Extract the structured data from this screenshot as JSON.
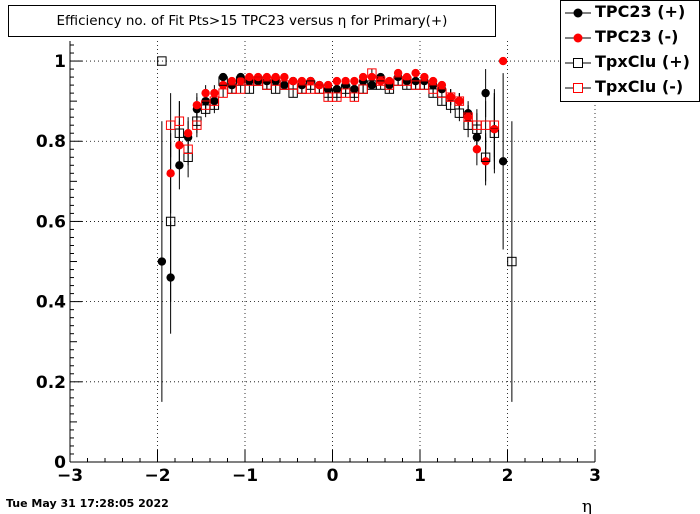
{
  "chart_data": {
    "type": "scatter",
    "title": "Efficiency no. of Fit Pts>15 TPC23 versus η for Primary(+)",
    "xlabel": "η",
    "ylabel": "",
    "xlim": [
      -3,
      3
    ],
    "ylim": [
      0,
      1.05
    ],
    "grid": true,
    "legend_position": "top-right",
    "x_ticks": [
      "−3",
      "−2",
      "−1",
      "0",
      "1",
      "2",
      "3"
    ],
    "y_ticks": [
      "0",
      "0.2",
      "0.4",
      "0.6",
      "0.8",
      "1"
    ],
    "series": [
      {
        "name": "TPC23 (+)",
        "marker": "filled-circle",
        "color": "#000000",
        "points": [
          {
            "x": -1.95,
            "y": 0.5,
            "err": 0.35
          },
          {
            "x": -1.85,
            "y": 0.46,
            "err": 0.14
          },
          {
            "x": -1.75,
            "y": 0.74,
            "err": 0.06
          },
          {
            "x": -1.65,
            "y": 0.81,
            "err": 0.04
          },
          {
            "x": -1.55,
            "y": 0.88,
            "err": 0.03
          },
          {
            "x": -1.45,
            "y": 0.9,
            "err": 0.02
          },
          {
            "x": -1.35,
            "y": 0.9,
            "err": 0.02
          },
          {
            "x": -1.25,
            "y": 0.96,
            "err": 0.01
          },
          {
            "x": -1.15,
            "y": 0.94,
            "err": 0.01
          },
          {
            "x": -1.05,
            "y": 0.96,
            "err": 0.01
          },
          {
            "x": -0.95,
            "y": 0.95,
            "err": 0.01
          },
          {
            "x": -0.85,
            "y": 0.95,
            "err": 0.01
          },
          {
            "x": -0.75,
            "y": 0.95,
            "err": 0.01
          },
          {
            "x": -0.65,
            "y": 0.95,
            "err": 0.01
          },
          {
            "x": -0.55,
            "y": 0.94,
            "err": 0.01
          },
          {
            "x": -0.45,
            "y": 0.95,
            "err": 0.01
          },
          {
            "x": -0.35,
            "y": 0.94,
            "err": 0.01
          },
          {
            "x": -0.25,
            "y": 0.95,
            "err": 0.01
          },
          {
            "x": -0.15,
            "y": 0.94,
            "err": 0.01
          },
          {
            "x": -0.05,
            "y": 0.93,
            "err": 0.01
          },
          {
            "x": 0.05,
            "y": 0.93,
            "err": 0.01
          },
          {
            "x": 0.15,
            "y": 0.94,
            "err": 0.01
          },
          {
            "x": 0.25,
            "y": 0.93,
            "err": 0.01
          },
          {
            "x": 0.35,
            "y": 0.95,
            "err": 0.01
          },
          {
            "x": 0.45,
            "y": 0.94,
            "err": 0.01
          },
          {
            "x": 0.55,
            "y": 0.96,
            "err": 0.01
          },
          {
            "x": 0.65,
            "y": 0.94,
            "err": 0.01
          },
          {
            "x": 0.75,
            "y": 0.96,
            "err": 0.01
          },
          {
            "x": 0.85,
            "y": 0.95,
            "err": 0.01
          },
          {
            "x": 0.95,
            "y": 0.95,
            "err": 0.01
          },
          {
            "x": 1.05,
            "y": 0.95,
            "err": 0.01
          },
          {
            "x": 1.15,
            "y": 0.94,
            "err": 0.01
          },
          {
            "x": 1.25,
            "y": 0.93,
            "err": 0.01
          },
          {
            "x": 1.35,
            "y": 0.91,
            "err": 0.02
          },
          {
            "x": 1.45,
            "y": 0.9,
            "err": 0.02
          },
          {
            "x": 1.55,
            "y": 0.87,
            "err": 0.03
          },
          {
            "x": 1.65,
            "y": 0.81,
            "err": 0.04
          },
          {
            "x": 1.75,
            "y": 0.92,
            "err": 0.06
          },
          {
            "x": 1.85,
            "y": 0.83,
            "err": 0.1
          },
          {
            "x": 1.95,
            "y": 0.75,
            "err": 0.22
          }
        ]
      },
      {
        "name": "TPC23 (-)",
        "marker": "filled-circle",
        "color": "#ff0000",
        "points": [
          {
            "x": -1.85,
            "y": 0.72,
            "err": 0.1
          },
          {
            "x": -1.75,
            "y": 0.79,
            "err": 0.06
          },
          {
            "x": -1.65,
            "y": 0.82,
            "err": 0.04
          },
          {
            "x": -1.55,
            "y": 0.89,
            "err": 0.03
          },
          {
            "x": -1.45,
            "y": 0.92,
            "err": 0.02
          },
          {
            "x": -1.35,
            "y": 0.92,
            "err": 0.02
          },
          {
            "x": -1.25,
            "y": 0.94,
            "err": 0.01
          },
          {
            "x": -1.15,
            "y": 0.95,
            "err": 0.01
          },
          {
            "x": -1.05,
            "y": 0.95,
            "err": 0.01
          },
          {
            "x": -0.95,
            "y": 0.96,
            "err": 0.01
          },
          {
            "x": -0.85,
            "y": 0.96,
            "err": 0.01
          },
          {
            "x": -0.75,
            "y": 0.96,
            "err": 0.01
          },
          {
            "x": -0.65,
            "y": 0.96,
            "err": 0.01
          },
          {
            "x": -0.55,
            "y": 0.96,
            "err": 0.01
          },
          {
            "x": -0.45,
            "y": 0.95,
            "err": 0.01
          },
          {
            "x": -0.35,
            "y": 0.95,
            "err": 0.01
          },
          {
            "x": -0.25,
            "y": 0.95,
            "err": 0.01
          },
          {
            "x": -0.15,
            "y": 0.94,
            "err": 0.01
          },
          {
            "x": -0.05,
            "y": 0.94,
            "err": 0.01
          },
          {
            "x": 0.05,
            "y": 0.95,
            "err": 0.01
          },
          {
            "x": 0.15,
            "y": 0.95,
            "err": 0.01
          },
          {
            "x": 0.25,
            "y": 0.95,
            "err": 0.01
          },
          {
            "x": 0.35,
            "y": 0.96,
            "err": 0.01
          },
          {
            "x": 0.45,
            "y": 0.96,
            "err": 0.01
          },
          {
            "x": 0.55,
            "y": 0.95,
            "err": 0.01
          },
          {
            "x": 0.65,
            "y": 0.95,
            "err": 0.01
          },
          {
            "x": 0.75,
            "y": 0.97,
            "err": 0.01
          },
          {
            "x": 0.85,
            "y": 0.96,
            "err": 0.01
          },
          {
            "x": 0.95,
            "y": 0.97,
            "err": 0.01
          },
          {
            "x": 1.05,
            "y": 0.96,
            "err": 0.01
          },
          {
            "x": 1.15,
            "y": 0.95,
            "err": 0.01
          },
          {
            "x": 1.25,
            "y": 0.94,
            "err": 0.01
          },
          {
            "x": 1.35,
            "y": 0.91,
            "err": 0.02
          },
          {
            "x": 1.45,
            "y": 0.9,
            "err": 0.02
          },
          {
            "x": 1.55,
            "y": 0.86,
            "err": 0.03
          },
          {
            "x": 1.65,
            "y": 0.78,
            "err": 0.04
          },
          {
            "x": 1.75,
            "y": 0.75,
            "err": 0.06
          },
          {
            "x": 1.85,
            "y": 0.83,
            "err": 0.08
          },
          {
            "x": 1.95,
            "y": 1.0,
            "err": 0.0
          }
        ]
      },
      {
        "name": "TpxClu (+)",
        "marker": "open-square",
        "color": "#000000",
        "points": [
          {
            "x": -1.95,
            "y": 1.0,
            "err": 0.0
          },
          {
            "x": -1.85,
            "y": 0.6,
            "err": 0.2
          },
          {
            "x": -1.75,
            "y": 0.82,
            "err": 0.08
          },
          {
            "x": -1.65,
            "y": 0.76,
            "err": 0.05
          },
          {
            "x": -1.55,
            "y": 0.85,
            "err": 0.03
          },
          {
            "x": -1.45,
            "y": 0.88,
            "err": 0.02
          },
          {
            "x": -1.35,
            "y": 0.89,
            "err": 0.02
          },
          {
            "x": -1.25,
            "y": 0.95,
            "err": 0.01
          },
          {
            "x": -1.15,
            "y": 0.93,
            "err": 0.01
          },
          {
            "x": -1.05,
            "y": 0.95,
            "err": 0.01
          },
          {
            "x": -0.95,
            "y": 0.93,
            "err": 0.01
          },
          {
            "x": -0.85,
            "y": 0.95,
            "err": 0.01
          },
          {
            "x": -0.75,
            "y": 0.94,
            "err": 0.01
          },
          {
            "x": -0.65,
            "y": 0.93,
            "err": 0.01
          },
          {
            "x": -0.55,
            "y": 0.94,
            "err": 0.01
          },
          {
            "x": -0.45,
            "y": 0.92,
            "err": 0.01
          },
          {
            "x": -0.35,
            "y": 0.93,
            "err": 0.01
          },
          {
            "x": -0.25,
            "y": 0.94,
            "err": 0.01
          },
          {
            "x": -0.15,
            "y": 0.93,
            "err": 0.01
          },
          {
            "x": -0.05,
            "y": 0.92,
            "err": 0.01
          },
          {
            "x": 0.05,
            "y": 0.92,
            "err": 0.01
          },
          {
            "x": 0.15,
            "y": 0.93,
            "err": 0.01
          },
          {
            "x": 0.25,
            "y": 0.92,
            "err": 0.01
          },
          {
            "x": 0.35,
            "y": 0.93,
            "err": 0.01
          },
          {
            "x": 0.45,
            "y": 0.94,
            "err": 0.01
          },
          {
            "x": 0.55,
            "y": 0.94,
            "err": 0.01
          },
          {
            "x": 0.65,
            "y": 0.93,
            "err": 0.01
          },
          {
            "x": 0.75,
            "y": 0.95,
            "err": 0.01
          },
          {
            "x": 0.85,
            "y": 0.94,
            "err": 0.01
          },
          {
            "x": 0.95,
            "y": 0.94,
            "err": 0.01
          },
          {
            "x": 1.05,
            "y": 0.94,
            "err": 0.01
          },
          {
            "x": 1.15,
            "y": 0.92,
            "err": 0.01
          },
          {
            "x": 1.25,
            "y": 0.9,
            "err": 0.01
          },
          {
            "x": 1.35,
            "y": 0.89,
            "err": 0.02
          },
          {
            "x": 1.45,
            "y": 0.87,
            "err": 0.02
          },
          {
            "x": 1.55,
            "y": 0.84,
            "err": 0.03
          },
          {
            "x": 1.65,
            "y": 0.83,
            "err": 0.04
          },
          {
            "x": 1.75,
            "y": 0.76,
            "err": 0.06
          },
          {
            "x": 1.85,
            "y": 0.82,
            "err": 0.1
          },
          {
            "x": 2.05,
            "y": 0.5,
            "err": 0.35
          }
        ]
      },
      {
        "name": "TpxClu (-)",
        "marker": "open-square",
        "color": "#ff0000",
        "points": [
          {
            "x": -1.85,
            "y": 0.84,
            "err": 0.08
          },
          {
            "x": -1.75,
            "y": 0.85,
            "err": 0.05
          },
          {
            "x": -1.65,
            "y": 0.78,
            "err": 0.04
          },
          {
            "x": -1.55,
            "y": 0.84,
            "err": 0.03
          },
          {
            "x": -1.45,
            "y": 0.89,
            "err": 0.02
          },
          {
            "x": -1.35,
            "y": 0.9,
            "err": 0.02
          },
          {
            "x": -1.25,
            "y": 0.92,
            "err": 0.01
          },
          {
            "x": -1.15,
            "y": 0.93,
            "err": 0.01
          },
          {
            "x": -1.05,
            "y": 0.93,
            "err": 0.01
          },
          {
            "x": -0.95,
            "y": 0.95,
            "err": 0.01
          },
          {
            "x": -0.85,
            "y": 0.95,
            "err": 0.01
          },
          {
            "x": -0.75,
            "y": 0.94,
            "err": 0.01
          },
          {
            "x": -0.65,
            "y": 0.95,
            "err": 0.01
          },
          {
            "x": -0.55,
            "y": 0.94,
            "err": 0.01
          },
          {
            "x": -0.45,
            "y": 0.94,
            "err": 0.01
          },
          {
            "x": -0.35,
            "y": 0.93,
            "err": 0.01
          },
          {
            "x": -0.25,
            "y": 0.93,
            "err": 0.01
          },
          {
            "x": -0.15,
            "y": 0.93,
            "err": 0.01
          },
          {
            "x": -0.05,
            "y": 0.91,
            "err": 0.01
          },
          {
            "x": 0.05,
            "y": 0.91,
            "err": 0.01
          },
          {
            "x": 0.15,
            "y": 0.92,
            "err": 0.01
          },
          {
            "x": 0.25,
            "y": 0.91,
            "err": 0.01
          },
          {
            "x": 0.35,
            "y": 0.93,
            "err": 0.01
          },
          {
            "x": 0.45,
            "y": 0.97,
            "err": 0.01
          },
          {
            "x": 0.55,
            "y": 0.95,
            "err": 0.01
          },
          {
            "x": 0.65,
            "y": 0.94,
            "err": 0.01
          },
          {
            "x": 0.75,
            "y": 0.95,
            "err": 0.01
          },
          {
            "x": 0.85,
            "y": 0.95,
            "err": 0.01
          },
          {
            "x": 0.95,
            "y": 0.94,
            "err": 0.01
          },
          {
            "x": 1.05,
            "y": 0.94,
            "err": 0.01
          },
          {
            "x": 1.15,
            "y": 0.93,
            "err": 0.01
          },
          {
            "x": 1.25,
            "y": 0.92,
            "err": 0.01
          },
          {
            "x": 1.35,
            "y": 0.91,
            "err": 0.02
          },
          {
            "x": 1.45,
            "y": 0.9,
            "err": 0.02
          },
          {
            "x": 1.55,
            "y": 0.86,
            "err": 0.03
          },
          {
            "x": 1.65,
            "y": 0.84,
            "err": 0.04
          },
          {
            "x": 1.75,
            "y": 0.84,
            "err": 0.06
          },
          {
            "x": 1.85,
            "y": 0.84,
            "err": 0.08
          }
        ]
      }
    ]
  },
  "footer": {
    "date": "Tue May 31 17:28:05 2022"
  }
}
